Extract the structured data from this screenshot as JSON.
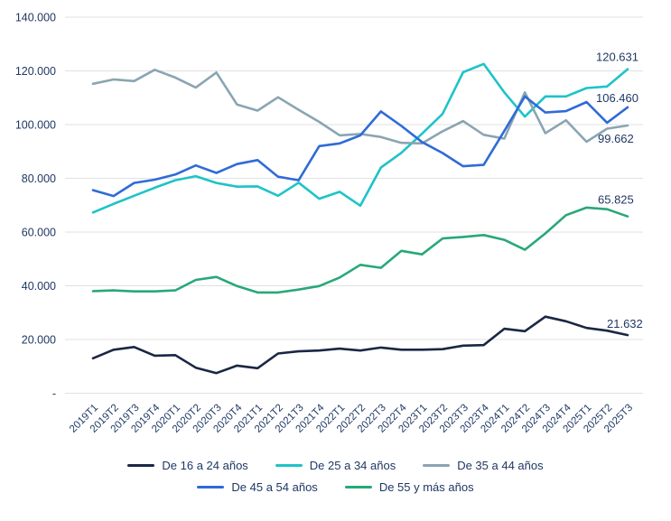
{
  "chart_data": {
    "type": "line",
    "title": "",
    "xlabel": "",
    "ylabel": "",
    "grid": true,
    "legend_position": "bottom",
    "y_axis": {
      "range": [
        0,
        140000
      ],
      "tick_step": 20000,
      "ticks": [
        {
          "value": 0,
          "label": "-"
        },
        {
          "value": 20000,
          "label": "20.000"
        },
        {
          "value": 40000,
          "label": "40.000"
        },
        {
          "value": 60000,
          "label": "60.000"
        },
        {
          "value": 80000,
          "label": "80.000"
        },
        {
          "value": 100000,
          "label": "100.000"
        },
        {
          "value": 120000,
          "label": "120.000"
        },
        {
          "value": 140000,
          "label": "140.000"
        }
      ]
    },
    "categories": [
      "2019T1",
      "2019T2",
      "2019T3",
      "2019T4",
      "2020T1",
      "2020T2",
      "2020T3",
      "2020T4",
      "2021T1",
      "2021T2",
      "2021T3",
      "2021T4",
      "2022T1",
      "2022T2",
      "2022T3",
      "2022T4",
      "2023T1",
      "2023T2",
      "2023T3",
      "2023T4",
      "2024T1",
      "2024T2",
      "2024T3",
      "2024T4",
      "2025T1",
      "2025T2",
      "2025T3"
    ],
    "series": [
      {
        "name": "De 16 a 24 años",
        "color": "#1a2744",
        "end_label": "21.632",
        "end_label_dx": 12,
        "end_label_dy": -8,
        "values": [
          13000,
          16200,
          17200,
          14000,
          14200,
          9500,
          7500,
          10300,
          9300,
          14800,
          15600,
          15900,
          16600,
          15900,
          17000,
          16200,
          16200,
          16400,
          17700,
          17900,
          24000,
          23100,
          28500,
          26800,
          24300,
          23300,
          21632
        ]
      },
      {
        "name": "De 25 a 34 años",
        "color": "#1ec3c9",
        "end_label": "120.631",
        "end_label_dx": 0,
        "end_label_dy": -9,
        "values": [
          67300,
          70500,
          73500,
          76500,
          79300,
          80800,
          78300,
          76900,
          77000,
          73500,
          78400,
          72400,
          75000,
          69800,
          84000,
          89500,
          96600,
          104000,
          119500,
          122600,
          112000,
          103000,
          110500,
          110500,
          113600,
          114200,
          120631
        ]
      },
      {
        "name": "De 35 a 44 años",
        "color": "#8aa5b3",
        "end_label": "99.662",
        "end_label_dx": 2,
        "end_label_dy": 19,
        "values": [
          115200,
          116800,
          116200,
          120400,
          117500,
          113800,
          119400,
          107500,
          105200,
          110200,
          105500,
          101000,
          96000,
          96500,
          95400,
          93200,
          93000,
          97500,
          101300,
          96200,
          94800,
          112000,
          96800,
          101600,
          93600,
          98500,
          99662
        ]
      },
      {
        "name": "De 45 a 54 años",
        "color": "#2f6bd7",
        "end_label": "106.460",
        "end_label_dx": 0,
        "end_label_dy": -6,
        "values": [
          75600,
          73400,
          78300,
          79500,
          81400,
          84800,
          82000,
          85300,
          86800,
          80600,
          79300,
          92000,
          93000,
          96000,
          104900,
          99500,
          93500,
          89400,
          84500,
          85000,
          97600,
          110500,
          104500,
          105000,
          108400,
          100700,
          106460
        ]
      },
      {
        "name": "De 55 y más años",
        "color": "#28a878",
        "end_label": "65.825",
        "end_label_dx": 2,
        "end_label_dy": -14,
        "values": [
          38000,
          38300,
          37900,
          37900,
          38300,
          42200,
          43300,
          39900,
          37500,
          37500,
          38600,
          39900,
          43100,
          47800,
          46700,
          53000,
          51700,
          57600,
          58200,
          58900,
          57100,
          53400,
          59500,
          66300,
          69100,
          68500,
          65825
        ]
      }
    ],
    "legend_rows": [
      [
        0,
        1,
        2
      ],
      [
        3,
        4
      ]
    ],
    "colors": {
      "tick_text": "#1f3864",
      "gridline": "#e1e1e1"
    }
  }
}
